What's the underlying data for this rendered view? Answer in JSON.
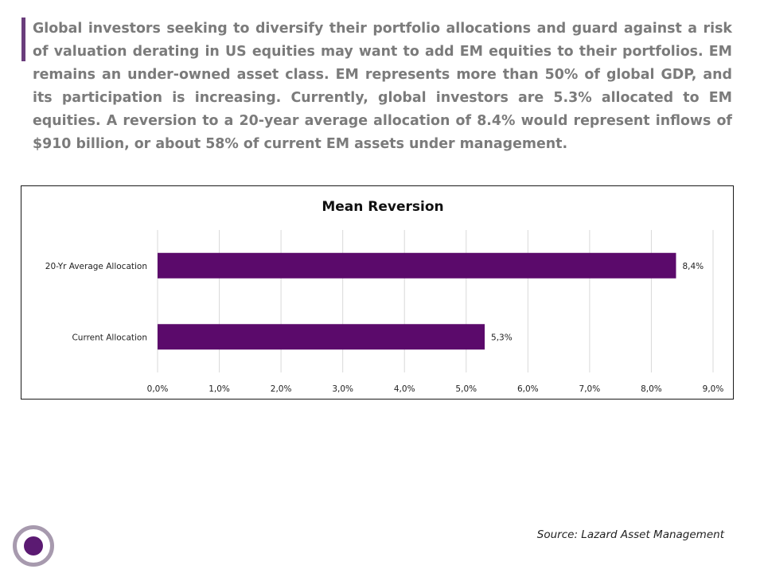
{
  "intro_text": "Global investors seeking to diversify their portfolio allocations and guard against a risk of valuation derating in US equities may want to add EM equities to their portfolios. EM remains an under-owned asset class. EM represents more than 50% of global GDP, and its participation is increasing. Currently, global investors are 5.3% allocated to EM equities. A reversion to a 20-year average allocation of 8.4% would represent inflows of $910 billion, or about 58% of current EM assets under management.",
  "source": "Source: Lazard Asset Management",
  "colors": {
    "accent": "#6a3d7c",
    "bar": "#5b0a6b",
    "logo_ring": "#a79aae",
    "logo_core": "#5b1a72"
  },
  "chart_data": {
    "type": "bar",
    "orientation": "horizontal",
    "title": "Mean Reversion",
    "categories": [
      "20-Yr Average Allocation",
      "Current Allocation"
    ],
    "values": [
      8.4,
      5.3
    ],
    "value_labels": [
      "8,4%",
      "5,3%"
    ],
    "xlim": [
      0,
      9
    ],
    "x_ticks": [
      "0,0%",
      "1,0%",
      "2,0%",
      "3,0%",
      "4,0%",
      "5,0%",
      "6,0%",
      "7,0%",
      "8,0%",
      "9,0%"
    ],
    "grid": true,
    "legend": "none"
  }
}
